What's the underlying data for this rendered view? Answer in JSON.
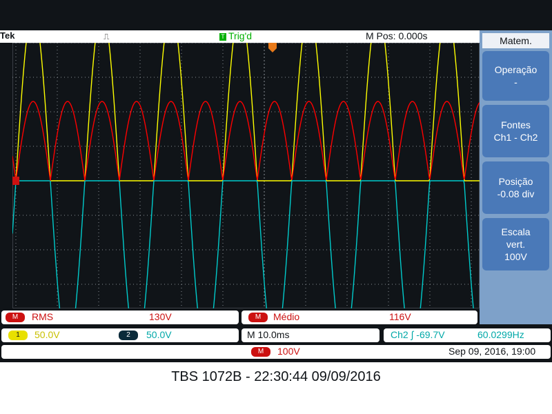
{
  "header": {
    "brand": "Tek",
    "trigger_status": "Trig'd",
    "trigger_badge": "T",
    "horizontal_position": "M Pos: 0.000s"
  },
  "menu": {
    "title": "Matem.",
    "items": [
      {
        "label": "Operação",
        "value": "-"
      },
      {
        "label": "Fontes",
        "value": "Ch1 - Ch2"
      },
      {
        "label": "Posição",
        "value": "-0.08 div"
      },
      {
        "label": "Escala",
        "value2": "vert.",
        "value": "100V"
      }
    ]
  },
  "measurements": [
    {
      "badge": "M",
      "name": "RMS",
      "value": "130V"
    },
    {
      "badge": "M",
      "name": "Médio",
      "value": "116V"
    }
  ],
  "channels": {
    "ch1_badge": "1",
    "ch1_scale": "50.0V",
    "ch2_badge": "2",
    "ch2_scale": "50.0V",
    "timebase": "M 10.0ms",
    "trigger_readout": "Ch2 ∫ -69.7V",
    "frequency": "60.0299Hz",
    "math_badge": "M",
    "math_scale": "100V",
    "timestamp": "Sep 09, 2016, 19:00"
  },
  "caption": "TBS 1072B - 22:30:44   09/09/2016",
  "chart_data": {
    "type": "line",
    "title": "",
    "xlabel": "",
    "ylabel": "",
    "grid": true,
    "divisions": {
      "x": 10,
      "y": 8
    },
    "frequency_hz": 60.03,
    "time_per_div_ms": 10,
    "series": [
      {
        "color": "#ffff00",
        "shape": "positive half-wave",
        "amplitude_div": 4.95,
        "offset_div": 0
      },
      {
        "color": "#00cccc",
        "shape": "negative half-wave",
        "amplitude_div": 4.95,
        "offset_div": 0
      },
      {
        "color": "#ff0000",
        "shape": "full-wave rectified (Ch1 - Ch2)",
        "amplitude_div": 2.3,
        "offset_div": 0
      }
    ]
  }
}
